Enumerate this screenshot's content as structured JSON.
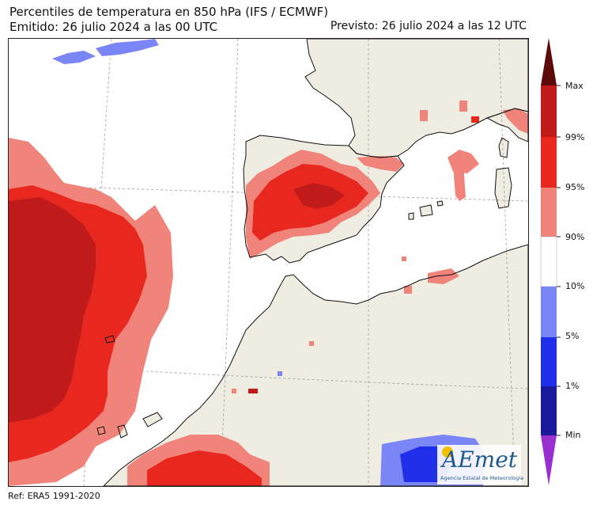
{
  "title": "Percentiles de temperatura en 850 hPa (IFS / ECMWF)",
  "issued": "Emitido: 26 julio 2024 a las 00 UTC",
  "forecast": "Previsto: 26 julio 2024 a las 12 UTC",
  "reference": "Ref: ERA5 1991-2020",
  "colorbar": {
    "labels": [
      "Max",
      "99%",
      "95%",
      "90%",
      "10%",
      "5%",
      "1%",
      "Min"
    ],
    "colors": {
      "max_plus": "#5c0a0a",
      "max_99": "#c01a1a",
      "p99_95": "#e8281e",
      "p95_90": "#f0847a",
      "p90_10": "#ffffff",
      "p10_5": "#7a86f5",
      "p5_1": "#1f2ee8",
      "p1_min": "#1a1a9a",
      "min_minus": "#9a2fd0"
    }
  },
  "map_colors": {
    "land": "#efece1",
    "sea": "#ffffff",
    "coast": "#111111",
    "graticule": "#9a9a9a"
  },
  "logo": {
    "word": "AEmet",
    "subtitle": "Agencia Estatal de Meteorología"
  }
}
